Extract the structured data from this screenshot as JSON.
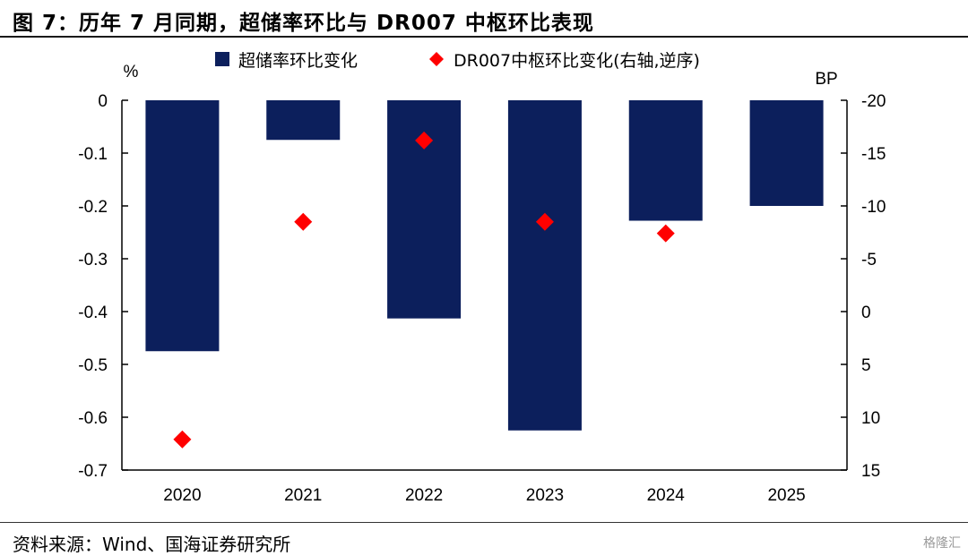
{
  "title": "图 7：历年 7 月同期，超储率环比与 DR007 中枢环比表现",
  "source": "资料来源：Wind、国海证券研究所",
  "watermark": "格隆汇",
  "colors": {
    "bar": "#0c1f5c",
    "marker": "#ff0000"
  },
  "chart_data": {
    "type": "bar",
    "categories": [
      "2020",
      "2021",
      "2022",
      "2023",
      "2024",
      "2025"
    ],
    "left_axis": {
      "unit_label": "%",
      "range": [
        -0.7,
        0
      ],
      "ticks": [
        "0",
        "-0.1",
        "-0.2",
        "-0.3",
        "-0.4",
        "-0.5",
        "-0.6",
        "-0.7"
      ],
      "tick_values": [
        0,
        -0.1,
        -0.2,
        -0.3,
        -0.4,
        -0.5,
        -0.6,
        -0.7
      ]
    },
    "right_axis": {
      "unit_label": "BP",
      "range": [
        -20,
        15
      ],
      "reversed": true,
      "ticks": [
        "-20",
        "-15",
        "-10",
        "-5",
        "0",
        "5",
        "10",
        "15"
      ],
      "tick_values": [
        -20,
        -15,
        -10,
        -5,
        0,
        5,
        10,
        15
      ]
    },
    "series": [
      {
        "name": "超储率环比变化",
        "type": "bar",
        "axis": "left",
        "values": [
          -0.475,
          -0.075,
          -0.413,
          -0.625,
          -0.228,
          -0.2
        ]
      },
      {
        "name": "DR007中枢环比变化(右轴,逆序)",
        "type": "scatter",
        "axis": "right",
        "values": [
          12.1,
          -8.5,
          -16.2,
          -8.5,
          null,
          null
        ]
      }
    ],
    "marker_2024": -7.4,
    "legend": {
      "position": "top"
    },
    "grid": false
  }
}
